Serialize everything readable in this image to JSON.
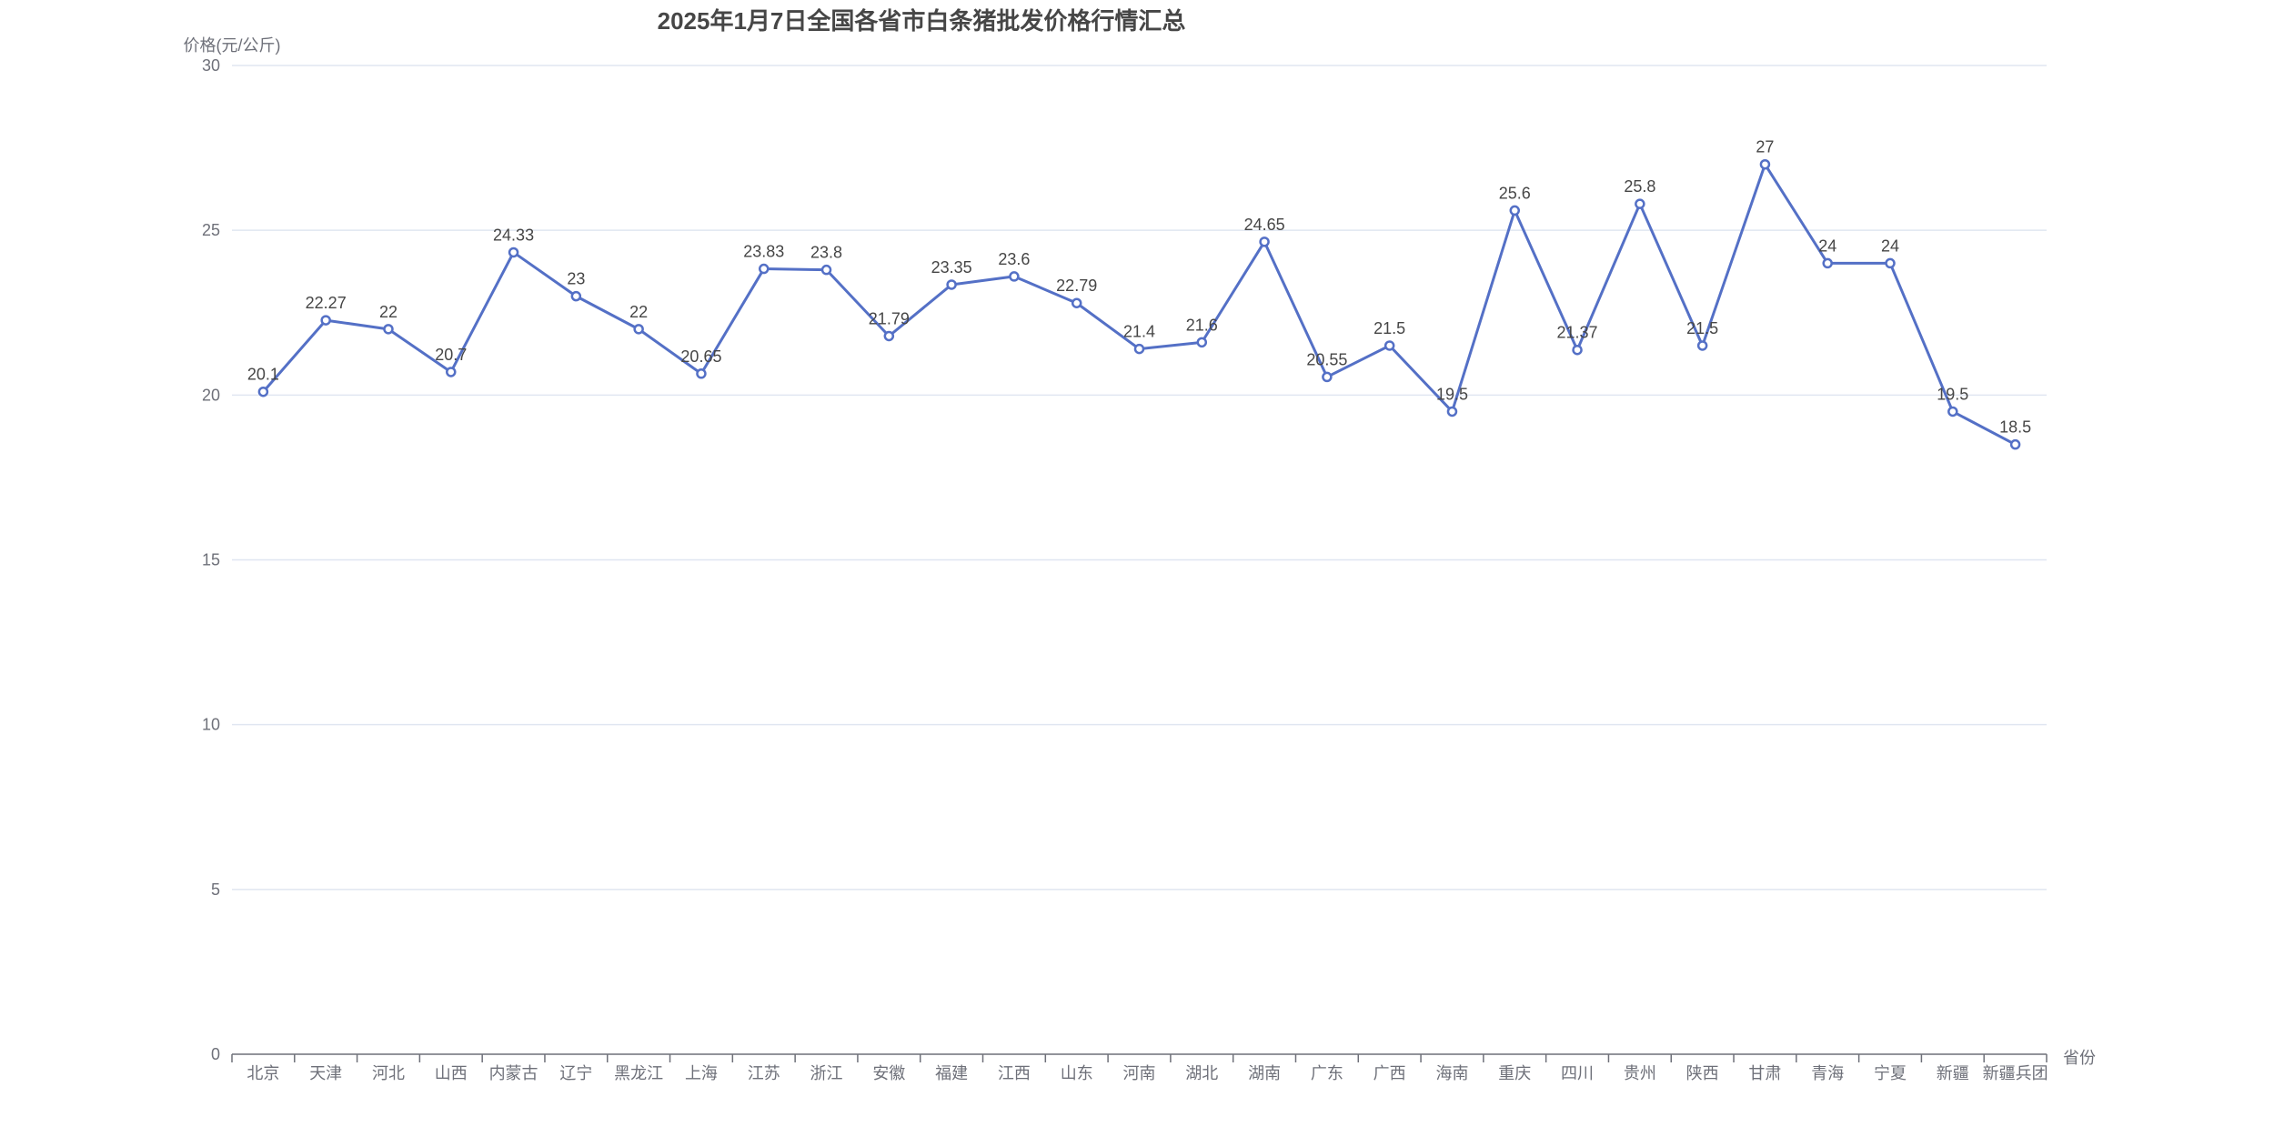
{
  "chart_data": {
    "type": "line",
    "title": "2025年1月7日全国各省市白条猪批发价格行情汇总",
    "y_axis_name": "价格(元/公斤)",
    "x_axis_name": "省份",
    "categories": [
      "北京",
      "天津",
      "河北",
      "山西",
      "内蒙古",
      "辽宁",
      "黑龙江",
      "上海",
      "江苏",
      "浙江",
      "安徽",
      "福建",
      "江西",
      "山东",
      "河南",
      "湖北",
      "湖南",
      "广东",
      "广西",
      "海南",
      "重庆",
      "四川",
      "贵州",
      "陕西",
      "甘肃",
      "青海",
      "宁夏",
      "新疆",
      "新疆兵团"
    ],
    "values": [
      20.1,
      22.27,
      22,
      20.7,
      24.33,
      23,
      22,
      20.65,
      23.83,
      23.8,
      21.79,
      23.35,
      23.6,
      22.79,
      21.4,
      21.6,
      24.65,
      20.55,
      21.5,
      19.5,
      25.6,
      21.37,
      25.8,
      21.5,
      27,
      24,
      24,
      19.5,
      18.5
    ],
    "ylim": [
      0,
      30
    ],
    "y_ticks": [
      0,
      5,
      10,
      15,
      20,
      25,
      30
    ],
    "grid": true,
    "legend": "none",
    "data_labels": true,
    "marker": "empty-circle",
    "colors": {
      "line": "#5470c6",
      "marker_fill": "#ffffff",
      "data_label": "#464646",
      "title": "#464646",
      "axis_line": "#6e7079",
      "axis_text": "#6e7079",
      "gridline": "#e0e6f1",
      "background": "#ffffff"
    }
  }
}
